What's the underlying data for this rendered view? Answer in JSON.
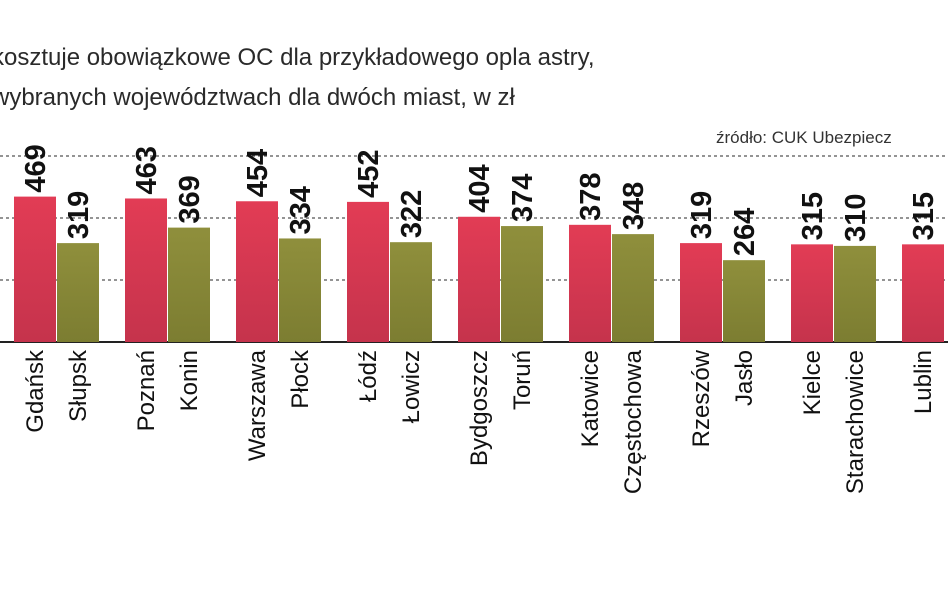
{
  "title_lines": [
    "kosztuje obowiązkowe OC dla przykładowego opla astry,",
    "wybranych województwach dla dwóch miast, w zł"
  ],
  "source": "źródło: CUK Ubezpiecz",
  "colors": {
    "capital": "#d93a55",
    "city": "#8a8a38",
    "grid": "#555555",
    "axis": "#222222"
  },
  "chart_data": {
    "type": "bar",
    "categories": [
      "Gdańsk",
      "Słupsk",
      "Poznań",
      "Konin",
      "Warszawa",
      "Płock",
      "Łódź",
      "Łowicz",
      "Bydgoszcz",
      "Toruń",
      "Katowice",
      "Częstochowa",
      "Rzeszów",
      "Jasło",
      "Kielce",
      "Starachowice",
      "Lublin"
    ],
    "values": [
      469,
      319,
      463,
      369,
      454,
      334,
      452,
      322,
      404,
      374,
      378,
      348,
      319,
      264,
      315,
      310,
      315
    ],
    "title": "",
    "ylim": [
      0,
      600
    ],
    "grid": true
  }
}
